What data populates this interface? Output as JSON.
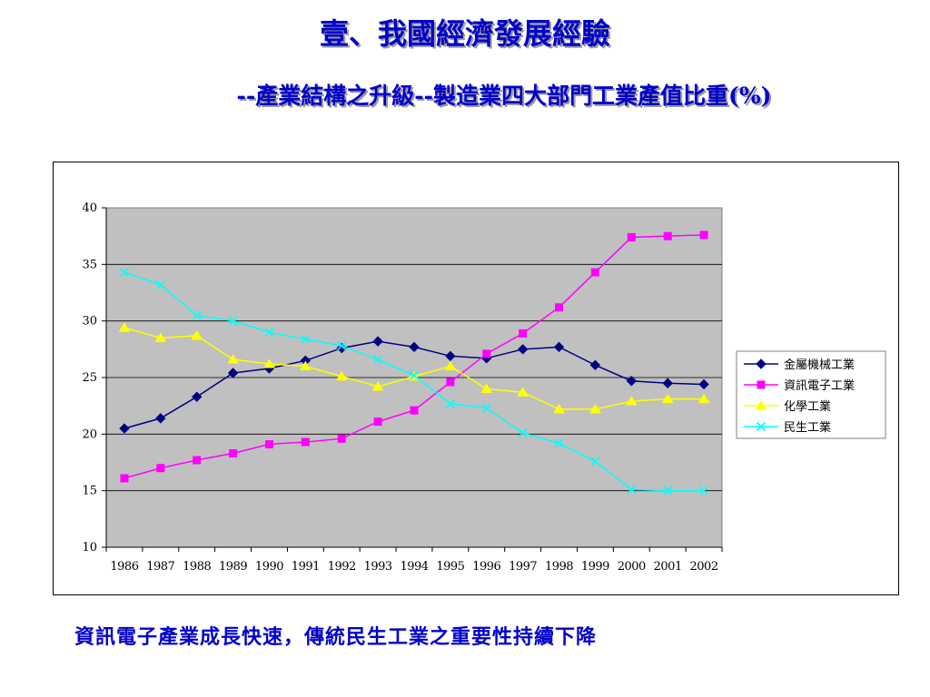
{
  "slide": {
    "title": "壹、我國經濟發展經驗",
    "subtitle": "--產業結構之升級--製造業四大部門工業產值比重(%)",
    "footer": "資訊電子產業成長快速，傳統民生工業之重要性持續下降"
  },
  "chart_data": {
    "type": "line",
    "title": "",
    "xlabel": "",
    "ylabel": "",
    "categories": [
      "1986",
      "1987",
      "1988",
      "1989",
      "1990",
      "1991",
      "1992",
      "1993",
      "1994",
      "1995",
      "1996",
      "1997",
      "1998",
      "1999",
      "2000",
      "2001",
      "2002"
    ],
    "ylim": [
      10,
      40
    ],
    "yticks": [
      10,
      15,
      20,
      25,
      30,
      35,
      40
    ],
    "grid": true,
    "plot_background": "#c0c0c0",
    "legend_position": "right",
    "series": [
      {
        "name": "金屬機械工業",
        "color": "#000080",
        "marker": "diamond",
        "values": [
          20.5,
          21.4,
          23.3,
          25.4,
          25.8,
          26.5,
          27.6,
          28.2,
          27.7,
          26.9,
          26.7,
          27.5,
          27.7,
          26.1,
          24.7,
          24.5,
          24.4
        ]
      },
      {
        "name": "資訊電子工業",
        "color": "#ff00ff",
        "marker": "square",
        "values": [
          16.1,
          17.0,
          17.7,
          18.3,
          19.1,
          19.3,
          19.6,
          21.1,
          22.1,
          24.6,
          27.1,
          28.9,
          31.2,
          34.3,
          37.4,
          37.5,
          37.6
        ]
      },
      {
        "name": "化學工業",
        "color": "#ffff00",
        "marker": "triangle",
        "values": [
          29.4,
          28.5,
          28.7,
          26.6,
          26.2,
          26.0,
          25.1,
          24.2,
          25.1,
          26.0,
          24.0,
          23.7,
          22.2,
          22.2,
          22.9,
          23.1,
          23.1
        ]
      },
      {
        "name": "民生工業",
        "color": "#00ffff",
        "marker": "x",
        "values": [
          34.3,
          33.2,
          30.5,
          30.0,
          29.0,
          28.4,
          27.8,
          26.6,
          25.2,
          22.7,
          22.3,
          20.1,
          19.2,
          17.6,
          15.1,
          15.0,
          15.0
        ]
      }
    ]
  }
}
